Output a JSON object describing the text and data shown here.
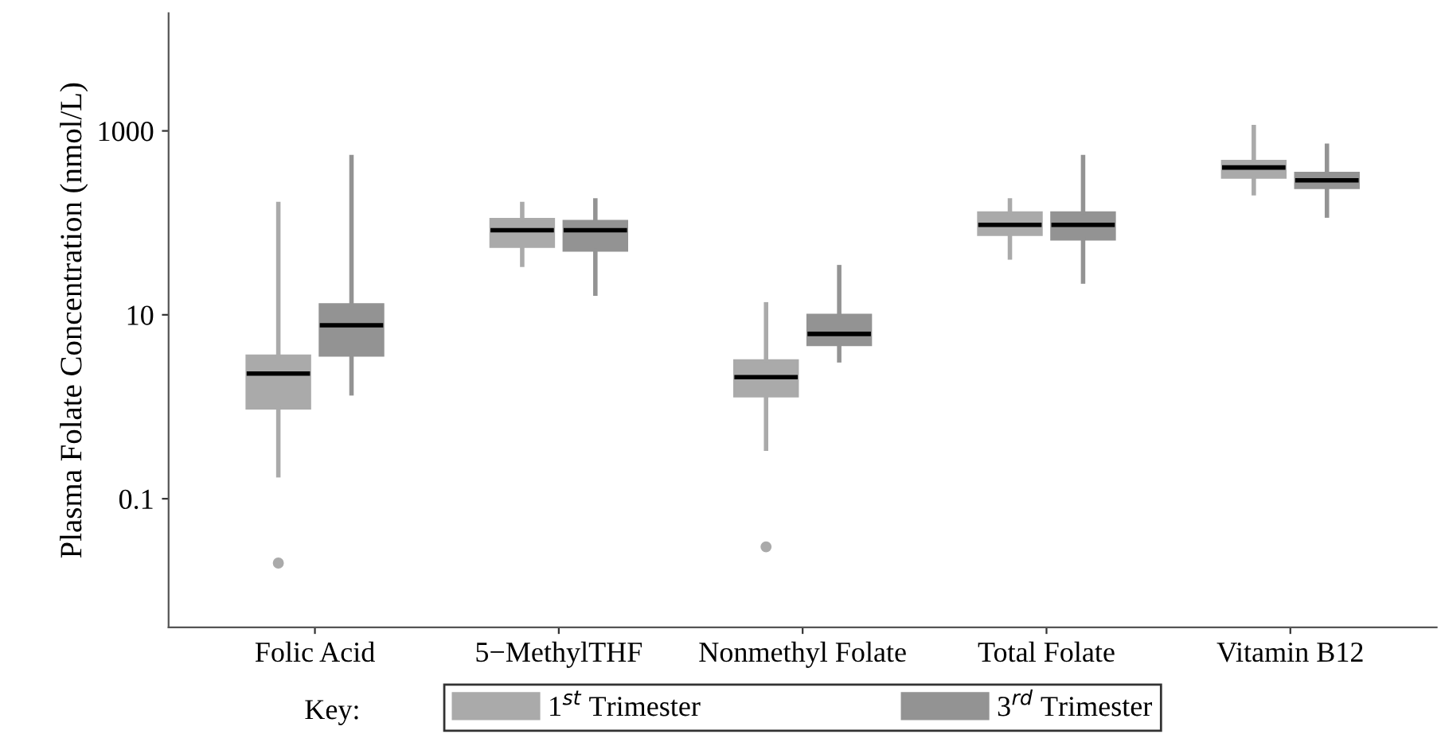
{
  "chart_data": {
    "type": "box",
    "ylabel": "Plasma Folate Concentration (nmol/L)",
    "legend_title": "Key:",
    "legend": "bottom",
    "log": true,
    "categories": [
      "Folic Acid",
      "5−MethylTHF",
      "Nonmethyl Folate",
      "Total Folate",
      "Vitamin B12"
    ],
    "ylim": [
      0.004,
      19000
    ],
    "yticks": [
      0.1,
      10,
      1000
    ],
    "series": [
      {
        "name": "1$^{st}$ Trimester",
        "color": "#aaaaaa",
        "boxes": [
          {
            "low": 0.18,
            "q1": 0.96,
            "median": 2.3,
            "q3": 3.6,
            "high": 160,
            "outliers": [
              0.02
            ]
          },
          {
            "low": 35,
            "q1": 55,
            "median": 83,
            "q3": 110,
            "high": 160
          },
          {
            "low": 0.35,
            "q1": 1.3,
            "median": 2.1,
            "q3": 3.2,
            "high": 13,
            "outliers": [
              0.03
            ]
          },
          {
            "low": 42,
            "q1": 74,
            "median": 95,
            "q3": 130,
            "high": 175
          },
          {
            "low": 210,
            "q1": 310,
            "median": 400,
            "q3": 470,
            "high": 1100
          }
        ]
      },
      {
        "name": "3$^{rd}$ Trimester",
        "color": "#939393",
        "boxes": [
          {
            "low": 1.4,
            "q1": 3.6,
            "median": 7.7,
            "q3": 13,
            "high": 520
          },
          {
            "low": 17,
            "q1": 50,
            "median": 83,
            "q3": 105,
            "high": 175
          },
          {
            "low": 3.2,
            "q1": 4.7,
            "median": 6.2,
            "q3": 10,
            "high": 33
          },
          {
            "low": 23,
            "q1": 66,
            "median": 95,
            "q3": 130,
            "high": 520
          },
          {
            "low": 120,
            "q1": 240,
            "median": 290,
            "q3": 350,
            "high": 690
          }
        ]
      }
    ]
  }
}
